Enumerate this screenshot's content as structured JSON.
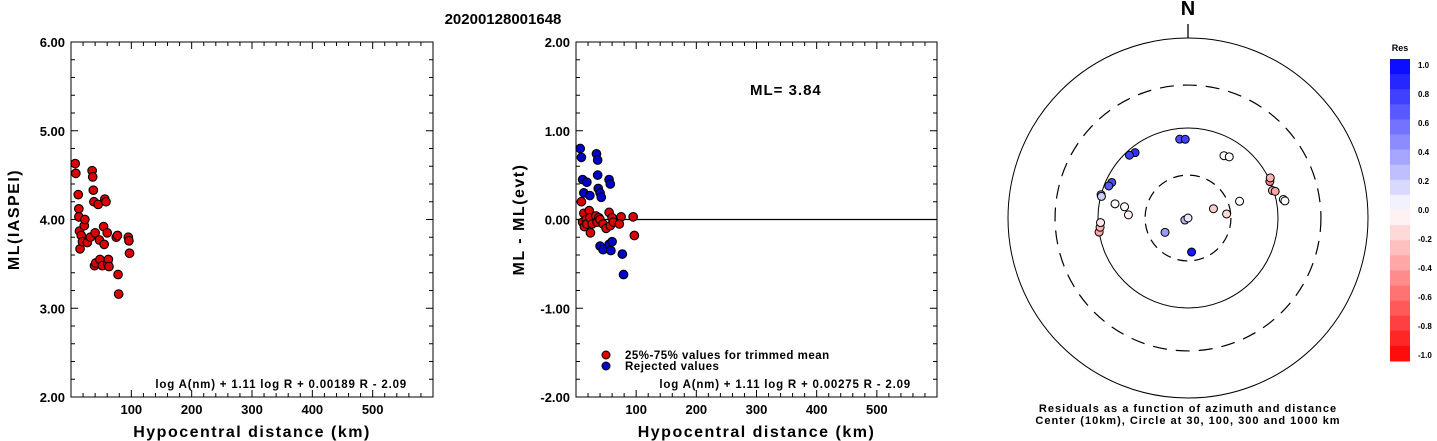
{
  "title": "20200128001648",
  "chart_data": [
    {
      "type": "scatter",
      "xlabel": "Hypocentral distance (km)",
      "ylabel": "ML(IASPEI)",
      "xlim": [
        0,
        600
      ],
      "ylim": [
        2.0,
        6.0
      ],
      "xticks": [
        100,
        200,
        300,
        400,
        500
      ],
      "xtick_labels": [
        "100",
        "200",
        "300",
        "400",
        "500"
      ],
      "yticks": [
        2.0,
        3.0,
        4.0,
        5.0,
        6.0
      ],
      "ytick_labels": [
        "2.00",
        "3.00",
        "4.00",
        "5.00",
        "6.00"
      ],
      "formula": "log A(nm) + 1.11 log R + 0.00189 R - 2.09",
      "marker_color": "#dd0000",
      "points": [
        [
          7,
          4.63
        ],
        [
          8,
          4.52
        ],
        [
          12,
          4.28
        ],
        [
          13,
          4.12
        ],
        [
          13,
          4.03
        ],
        [
          14,
          3.87
        ],
        [
          15,
          3.67
        ],
        [
          17,
          3.82
        ],
        [
          19,
          3.75
        ],
        [
          22,
          3.93
        ],
        [
          23,
          4.0
        ],
        [
          27,
          3.74
        ],
        [
          32,
          3.8
        ],
        [
          35,
          4.55
        ],
        [
          36,
          4.48
        ],
        [
          37,
          4.33
        ],
        [
          38,
          4.2
        ],
        [
          39,
          3.48
        ],
        [
          40,
          3.85
        ],
        [
          41,
          3.51
        ],
        [
          45,
          4.17
        ],
        [
          47,
          3.77
        ],
        [
          48,
          3.55
        ],
        [
          52,
          3.48
        ],
        [
          54,
          3.92
        ],
        [
          55,
          3.72
        ],
        [
          56,
          4.23
        ],
        [
          58,
          4.2
        ],
        [
          60,
          3.85
        ],
        [
          61,
          3.5
        ],
        [
          62,
          3.55
        ],
        [
          63,
          3.47
        ],
        [
          75,
          3.8
        ],
        [
          77,
          3.82
        ],
        [
          78,
          3.38
        ],
        [
          79,
          3.16
        ],
        [
          95,
          3.8
        ],
        [
          96,
          3.76
        ],
        [
          97,
          3.62
        ]
      ]
    },
    {
      "type": "scatter",
      "xlabel": "Hypocentral distance (km)",
      "ylabel": "ML - ML(evt)",
      "xlim": [
        0,
        600
      ],
      "ylim": [
        -2.0,
        2.0
      ],
      "xticks": [
        100,
        200,
        300,
        400,
        500
      ],
      "xtick_labels": [
        "100",
        "200",
        "300",
        "400",
        "500"
      ],
      "yticks": [
        -2.0,
        -1.0,
        0.0,
        1.0,
        2.0
      ],
      "ytick_labels": [
        "-2.00",
        "-1.00",
        "0.00",
        "1.00",
        "2.00"
      ],
      "ml_label": "ML= 3.84",
      "formula": "log A(nm) + 1.11 log R + 0.00275 R - 2.09",
      "legend": [
        {
          "label": "25%-75% values for trimmed mean",
          "color": "#dd0000"
        },
        {
          "label": "Rejected values",
          "color": "#0000cc"
        }
      ],
      "trimmed_points": [
        [
          9,
          0.2
        ],
        [
          11,
          -0.03
        ],
        [
          13,
          0.07
        ],
        [
          14,
          -0.08
        ],
        [
          17,
          0.0
        ],
        [
          18,
          -0.05
        ],
        [
          22,
          0.1
        ],
        [
          23,
          0.02
        ],
        [
          24,
          -0.15
        ],
        [
          27,
          -0.05
        ],
        [
          33,
          0.04
        ],
        [
          35,
          -0.03
        ],
        [
          38,
          0.02
        ],
        [
          40,
          0.0
        ],
        [
          45,
          -0.05
        ],
        [
          50,
          -0.1
        ],
        [
          55,
          0.08
        ],
        [
          57,
          -0.07
        ],
        [
          60,
          0.02
        ],
        [
          62,
          -0.03
        ],
        [
          75,
          0.03
        ],
        [
          95,
          0.03
        ],
        [
          97,
          -0.18
        ],
        [
          72,
          -0.05
        ]
      ],
      "rejected_points": [
        [
          7,
          0.8
        ],
        [
          9,
          0.7
        ],
        [
          11,
          0.45
        ],
        [
          13,
          0.3
        ],
        [
          18,
          0.42
        ],
        [
          23,
          0.27
        ],
        [
          34,
          0.74
        ],
        [
          36,
          0.67
        ],
        [
          36,
          0.5
        ],
        [
          37,
          0.35
        ],
        [
          40,
          0.3
        ],
        [
          42,
          0.25
        ],
        [
          55,
          0.45
        ],
        [
          57,
          0.4
        ],
        [
          40,
          -0.3
        ],
        [
          45,
          -0.34
        ],
        [
          55,
          -0.28
        ],
        [
          58,
          -0.35
        ],
        [
          60,
          -0.25
        ],
        [
          77,
          -0.39
        ],
        [
          79,
          -0.62
        ]
      ]
    },
    {
      "type": "scatter",
      "subtype": "polar",
      "north_label": "N",
      "colorbar_title": "Res",
      "colorbar_ticks": [
        "1.0",
        "0.8",
        "0.6",
        "0.4",
        "0.2",
        "0.0",
        "-0.2",
        "-0.4",
        "-0.6",
        "-0.8",
        "-1.0"
      ],
      "caption_line1": "Residuals as a function of azimuth and distance",
      "caption_line2": "Center (10km), Circle at 30, 100, 300 and 1000 km",
      "stations": [
        {
          "azimuth": 321,
          "distance_km": 86,
          "residual": 0.8
        },
        {
          "azimuth": 317,
          "distance_km": 90,
          "residual": 0.75
        },
        {
          "azimuth": 295,
          "distance_km": 86,
          "residual": 0.7
        },
        {
          "azimuth": 292,
          "distance_km": 89,
          "residual": 0.65
        },
        {
          "azimuth": 354,
          "distance_km": 76,
          "residual": 0.7
        },
        {
          "azimuth": 358,
          "distance_km": 75,
          "residual": 0.75
        },
        {
          "azimuth": 285,
          "distance_km": 100,
          "residual": 0.4
        },
        {
          "azimuth": 284,
          "distance_km": 98,
          "residual": 0.2
        },
        {
          "azimuth": 261,
          "distance_km": 100,
          "residual": -0.35
        },
        {
          "azimuth": 264,
          "distance_km": 96,
          "residual": -0.3
        },
        {
          "azimuth": 267,
          "distance_km": 94,
          "residual": -0.1
        },
        {
          "azimuth": 281,
          "distance_km": 67,
          "residual": 0.02
        },
        {
          "azimuth": 280,
          "distance_km": 52,
          "residual": 0.0
        },
        {
          "azimuth": 273,
          "distance_km": 46,
          "residual": -0.05
        },
        {
          "azimuth": 238,
          "distance_km": 20,
          "residual": 0.4
        },
        {
          "azimuth": 237,
          "distance_km": 11,
          "residual": 0.3
        },
        {
          "azimuth": 254,
          "distance_km": 8,
          "residual": 0.1
        },
        {
          "azimuth": 174,
          "distance_km": 24,
          "residual": 0.9
        },
        {
          "azimuth": 70,
          "distance_km": 20,
          "residual": -0.2
        },
        {
          "azimuth": 84,
          "distance_km": 27,
          "residual": -0.15
        },
        {
          "azimuth": 72,
          "distance_km": 40,
          "residual": 0.02
        },
        {
          "azimuth": 30,
          "distance_km": 63,
          "residual": 0.0
        },
        {
          "azimuth": 34,
          "distance_km": 66,
          "residual": 0.02
        },
        {
          "azimuth": 66,
          "distance_km": 99,
          "residual": -0.5
        },
        {
          "azimuth": 64,
          "distance_km": 104,
          "residual": -0.3
        },
        {
          "azimuth": 72,
          "distance_km": 97,
          "residual": -0.3
        },
        {
          "azimuth": 73,
          "distance_km": 103,
          "residual": -0.35
        },
        {
          "azimuth": 79,
          "distance_km": 120,
          "residual": 0.0
        },
        {
          "azimuth": 80,
          "distance_km": 124,
          "residual": -0.02
        }
      ]
    }
  ]
}
